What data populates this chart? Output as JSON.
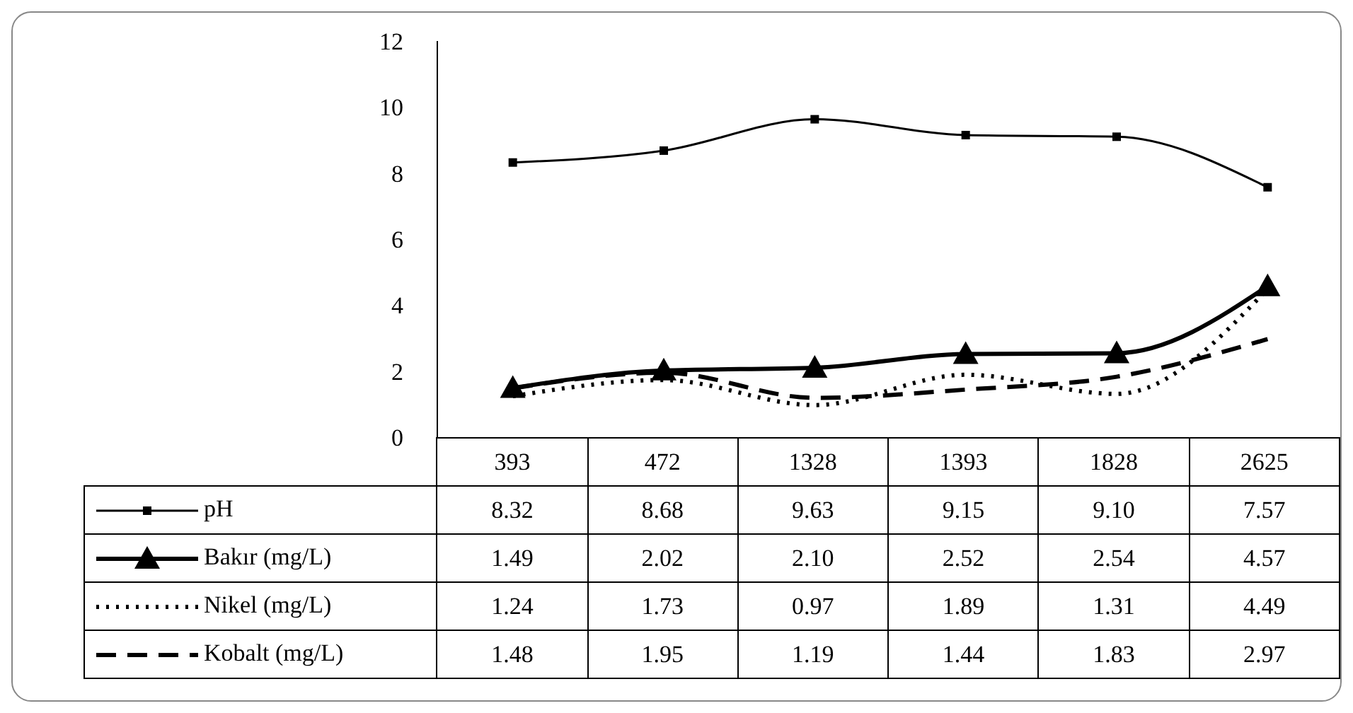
{
  "chart_data": {
    "type": "line",
    "categories": [
      "393",
      "472",
      "1328",
      "1393",
      "1828",
      "2625"
    ],
    "ylim": [
      0,
      12
    ],
    "yticks": [
      0,
      2,
      4,
      6,
      8,
      10,
      12
    ],
    "grid": false,
    "legend": "bottom left",
    "series": [
      {
        "name": "pH",
        "color": "#000000",
        "marker": "square",
        "line_style": "solid",
        "values": [
          8.32,
          8.68,
          9.63,
          9.15,
          9.1,
          7.57
        ],
        "value_labels": [
          "8.32",
          "8.68",
          "9.63",
          "9.15",
          "9.10",
          "7.57"
        ]
      },
      {
        "name": "Bakır (mg/L)",
        "color": "#000000",
        "marker": "triangle",
        "line_style": "solid",
        "values": [
          1.49,
          2.02,
          2.1,
          2.52,
          2.54,
          4.57
        ],
        "value_labels": [
          "1.49",
          "2.02",
          "2.10",
          "2.52",
          "2.54",
          "4.57"
        ]
      },
      {
        "name": "Nikel (mg/L)",
        "color": "#000000",
        "marker": "none",
        "line_style": "dotted",
        "values": [
          1.24,
          1.73,
          0.97,
          1.89,
          1.31,
          4.49
        ],
        "value_labels": [
          "1.24",
          "1.73",
          "0.97",
          "1.89",
          "1.31",
          "4.49"
        ]
      },
      {
        "name": "Kobalt (mg/L)",
        "color": "#000000",
        "marker": "none",
        "line_style": "dashed",
        "values": [
          1.48,
          1.95,
          1.19,
          1.44,
          1.83,
          2.97
        ],
        "value_labels": [
          "1.48",
          "1.95",
          "1.19",
          "1.44",
          "1.83",
          "2.97"
        ]
      }
    ]
  }
}
